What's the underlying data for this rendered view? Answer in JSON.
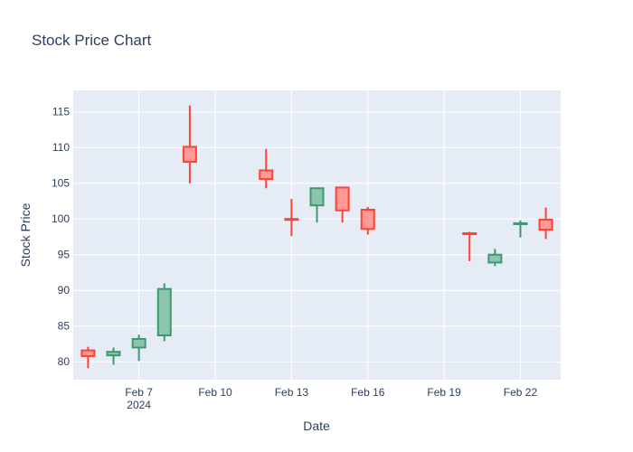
{
  "chart_data": {
    "type": "candlestick",
    "title": "Stock Price Chart",
    "xlabel": "Date",
    "ylabel": "Stock Price",
    "xlim": [
      "2024-02-04T10:00",
      "2024-02-23T14:00"
    ],
    "ylim": [
      77.5,
      118
    ],
    "x_ticks": [
      {
        "date": "2024-02-07",
        "label": "Feb 7",
        "sublabel": "2024"
      },
      {
        "date": "2024-02-10",
        "label": "Feb 10"
      },
      {
        "date": "2024-02-13",
        "label": "Feb 13"
      },
      {
        "date": "2024-02-16",
        "label": "Feb 16"
      },
      {
        "date": "2024-02-19",
        "label": "Feb 19"
      },
      {
        "date": "2024-02-22",
        "label": "Feb 22"
      }
    ],
    "y_ticks": [
      80,
      85,
      90,
      95,
      100,
      105,
      110,
      115
    ],
    "grid": true,
    "colors": {
      "increasing_line": "#3d9970",
      "increasing_fill": "#8dc4ad",
      "decreasing_line": "#ff4136",
      "decreasing_fill": "#ff9b94",
      "plot_bg": "#e5ecf6",
      "grid": "#ffffff",
      "text": "#2a3f5f"
    },
    "candles": [
      {
        "date": "2024-02-05",
        "open": 81.6,
        "high": 82.1,
        "low": 79.1,
        "close": 80.8
      },
      {
        "date": "2024-02-06",
        "open": 80.9,
        "high": 82.0,
        "low": 79.6,
        "close": 81.4
      },
      {
        "date": "2024-02-07",
        "open": 82.0,
        "high": 83.8,
        "low": 80.1,
        "close": 83.2
      },
      {
        "date": "2024-02-08",
        "open": 83.7,
        "high": 91.0,
        "low": 82.9,
        "close": 90.2
      },
      {
        "date": "2024-02-09",
        "open": 110.1,
        "high": 115.9,
        "low": 105.0,
        "close": 108.0
      },
      {
        "date": "2024-02-12",
        "open": 106.8,
        "high": 109.8,
        "low": 104.3,
        "close": 105.6
      },
      {
        "date": "2024-02-13",
        "open": 100.0,
        "high": 102.8,
        "low": 97.6,
        "close": 99.9
      },
      {
        "date": "2024-02-14",
        "open": 101.9,
        "high": 104.4,
        "low": 99.5,
        "close": 104.3
      },
      {
        "date": "2024-02-15",
        "open": 104.4,
        "high": 104.5,
        "low": 99.5,
        "close": 101.2
      },
      {
        "date": "2024-02-16",
        "open": 101.3,
        "high": 101.7,
        "low": 97.8,
        "close": 98.6
      },
      {
        "date": "2024-02-20",
        "open": 98.0,
        "high": 98.2,
        "low": 94.1,
        "close": 97.9
      },
      {
        "date": "2024-02-21",
        "open": 93.9,
        "high": 95.8,
        "low": 93.4,
        "close": 95.0
      },
      {
        "date": "2024-02-22",
        "open": 99.3,
        "high": 99.8,
        "low": 97.4,
        "close": 99.4
      },
      {
        "date": "2024-02-23",
        "open": 99.9,
        "high": 101.6,
        "low": 97.2,
        "close": 98.5
      }
    ]
  }
}
